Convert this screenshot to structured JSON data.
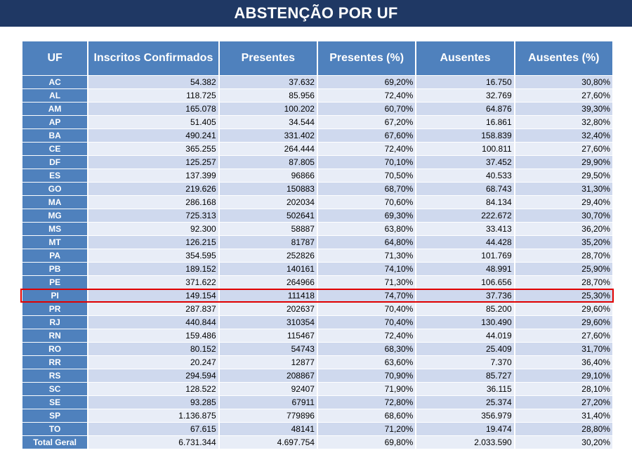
{
  "title": "ABSTENÇÃO POR UF",
  "columns": [
    "UF",
    "Inscritos Confirmados",
    "Presentes",
    "Presentes (%)",
    "Ausentes",
    "Ausentes (%)"
  ],
  "rows": [
    {
      "uf": "AC",
      "inscritos": "54.382",
      "presentes": "37.632",
      "presentes_pct": "69,20%",
      "ausentes": "16.750",
      "ausentes_pct": "30,80%"
    },
    {
      "uf": "AL",
      "inscritos": "118.725",
      "presentes": "85.956",
      "presentes_pct": "72,40%",
      "ausentes": "32.769",
      "ausentes_pct": "27,60%"
    },
    {
      "uf": "AM",
      "inscritos": "165.078",
      "presentes": "100.202",
      "presentes_pct": "60,70%",
      "ausentes": "64.876",
      "ausentes_pct": "39,30%"
    },
    {
      "uf": "AP",
      "inscritos": "51.405",
      "presentes": "34.544",
      "presentes_pct": "67,20%",
      "ausentes": "16.861",
      "ausentes_pct": "32,80%"
    },
    {
      "uf": "BA",
      "inscritos": "490.241",
      "presentes": "331.402",
      "presentes_pct": "67,60%",
      "ausentes": "158.839",
      "ausentes_pct": "32,40%"
    },
    {
      "uf": "CE",
      "inscritos": "365.255",
      "presentes": "264.444",
      "presentes_pct": "72,40%",
      "ausentes": "100.811",
      "ausentes_pct": "27,60%"
    },
    {
      "uf": "DF",
      "inscritos": "125.257",
      "presentes": "87.805",
      "presentes_pct": "70,10%",
      "ausentes": "37.452",
      "ausentes_pct": "29,90%"
    },
    {
      "uf": "ES",
      "inscritos": "137.399",
      "presentes": "96866",
      "presentes_pct": "70,50%",
      "ausentes": "40.533",
      "ausentes_pct": "29,50%"
    },
    {
      "uf": "GO",
      "inscritos": "219.626",
      "presentes": "150883",
      "presentes_pct": "68,70%",
      "ausentes": "68.743",
      "ausentes_pct": "31,30%"
    },
    {
      "uf": "MA",
      "inscritos": "286.168",
      "presentes": "202034",
      "presentes_pct": "70,60%",
      "ausentes": "84.134",
      "ausentes_pct": "29,40%"
    },
    {
      "uf": "MG",
      "inscritos": "725.313",
      "presentes": "502641",
      "presentes_pct": "69,30%",
      "ausentes": "222.672",
      "ausentes_pct": "30,70%"
    },
    {
      "uf": "MS",
      "inscritos": "92.300",
      "presentes": "58887",
      "presentes_pct": "63,80%",
      "ausentes": "33.413",
      "ausentes_pct": "36,20%"
    },
    {
      "uf": "MT",
      "inscritos": "126.215",
      "presentes": "81787",
      "presentes_pct": "64,80%",
      "ausentes": "44.428",
      "ausentes_pct": "35,20%"
    },
    {
      "uf": "PA",
      "inscritos": "354.595",
      "presentes": "252826",
      "presentes_pct": "71,30%",
      "ausentes": "101.769",
      "ausentes_pct": "28,70%"
    },
    {
      "uf": "PB",
      "inscritos": "189.152",
      "presentes": "140161",
      "presentes_pct": "74,10%",
      "ausentes": "48.991",
      "ausentes_pct": "25,90%"
    },
    {
      "uf": "PE",
      "inscritos": "371.622",
      "presentes": "264966",
      "presentes_pct": "71,30%",
      "ausentes": "106.656",
      "ausentes_pct": "28,70%"
    },
    {
      "uf": "PI",
      "inscritos": "149.154",
      "presentes": "111418",
      "presentes_pct": "74,70%",
      "ausentes": "37.736",
      "ausentes_pct": "25,30%",
      "highlighted": true
    },
    {
      "uf": "PR",
      "inscritos": "287.837",
      "presentes": "202637",
      "presentes_pct": "70,40%",
      "ausentes": "85.200",
      "ausentes_pct": "29,60%"
    },
    {
      "uf": "RJ",
      "inscritos": "440.844",
      "presentes": "310354",
      "presentes_pct": "70,40%",
      "ausentes": "130.490",
      "ausentes_pct": "29,60%"
    },
    {
      "uf": "RN",
      "inscritos": "159.486",
      "presentes": "115467",
      "presentes_pct": "72,40%",
      "ausentes": "44.019",
      "ausentes_pct": "27,60%"
    },
    {
      "uf": "RO",
      "inscritos": "80.152",
      "presentes": "54743",
      "presentes_pct": "68,30%",
      "ausentes": "25.409",
      "ausentes_pct": "31,70%"
    },
    {
      "uf": "RR",
      "inscritos": "20.247",
      "presentes": "12877",
      "presentes_pct": "63,60%",
      "ausentes": "7.370",
      "ausentes_pct": "36,40%"
    },
    {
      "uf": "RS",
      "inscritos": "294.594",
      "presentes": "208867",
      "presentes_pct": "70,90%",
      "ausentes": "85.727",
      "ausentes_pct": "29,10%"
    },
    {
      "uf": "SC",
      "inscritos": "128.522",
      "presentes": "92407",
      "presentes_pct": "71,90%",
      "ausentes": "36.115",
      "ausentes_pct": "28,10%"
    },
    {
      "uf": "SE",
      "inscritos": "93.285",
      "presentes": "67911",
      "presentes_pct": "72,80%",
      "ausentes": "25.374",
      "ausentes_pct": "27,20%"
    },
    {
      "uf": "SP",
      "inscritos": "1.136.875",
      "presentes": "779896",
      "presentes_pct": "68,60%",
      "ausentes": "356.979",
      "ausentes_pct": "31,40%"
    },
    {
      "uf": "TO",
      "inscritos": "67.615",
      "presentes": "48141",
      "presentes_pct": "71,20%",
      "ausentes": "19.474",
      "ausentes_pct": "28,80%"
    }
  ],
  "total": {
    "uf": "Total Geral",
    "inscritos": "6.731.344",
    "presentes": "4.697.754",
    "presentes_pct": "69,80%",
    "ausentes": "2.033.590",
    "ausentes_pct": "30,20%"
  },
  "colors": {
    "title_bg": "#1f3864",
    "header_bg": "#4f81bd",
    "row_odd": "#cfd9ee",
    "row_even": "#e8edf7",
    "highlight_border": "#e00000"
  }
}
